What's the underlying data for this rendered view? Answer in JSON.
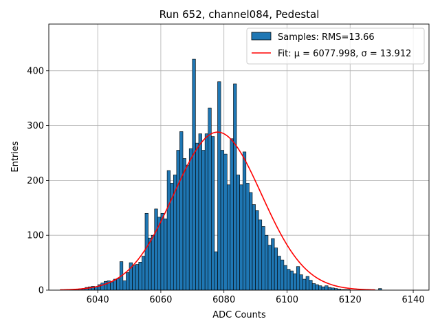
{
  "chart_data": {
    "type": "bar",
    "title": "Run 652, channel084, Pedestal",
    "xlabel": "ADC Counts",
    "ylabel": "Entries",
    "xlim": [
      6024.5,
      6145
    ],
    "ylim": [
      0,
      485
    ],
    "xticks": [
      6040,
      6060,
      6080,
      6100,
      6120,
      6140
    ],
    "yticks": [
      0,
      100,
      200,
      300,
      400
    ],
    "grid": true,
    "legend_position": "top-right",
    "colors": {
      "bars": "#1f77b4",
      "bar_edge": "#000000",
      "fit": "#ff0000",
      "grid": "#b0b0b0"
    },
    "histogram": {
      "name": "Samples: RMS=13.66",
      "bin_start": 6028,
      "bin_width": 1,
      "counts": [
        0,
        0,
        0,
        1,
        1,
        2,
        2,
        3,
        5,
        6,
        7,
        6,
        10,
        13,
        16,
        17,
        15,
        20,
        21,
        52,
        17,
        32,
        50,
        45,
        47,
        51,
        62,
        140,
        95,
        100,
        148,
        133,
        140,
        130,
        218,
        195,
        210,
        255,
        289,
        240,
        228,
        258,
        421,
        268,
        285,
        255,
        285,
        332,
        280,
        70,
        380,
        255,
        248,
        192,
        276,
        376,
        210,
        192,
        252,
        195,
        178,
        156,
        145,
        128,
        116,
        100,
        82,
        94,
        77,
        62,
        55,
        45,
        38,
        35,
        30,
        43,
        28,
        20,
        25,
        18,
        12,
        10,
        8,
        6,
        8,
        5,
        4,
        3,
        2,
        1,
        1,
        1,
        0,
        0,
        0,
        0,
        0,
        0,
        0,
        0,
        0,
        3
      ]
    },
    "fit": {
      "name": "Fit: μ = 6077.998, σ = 13.912",
      "mu": 6077.998,
      "sigma": 13.912,
      "amplitude": 288,
      "x_range": [
        6028,
        6128
      ]
    }
  }
}
